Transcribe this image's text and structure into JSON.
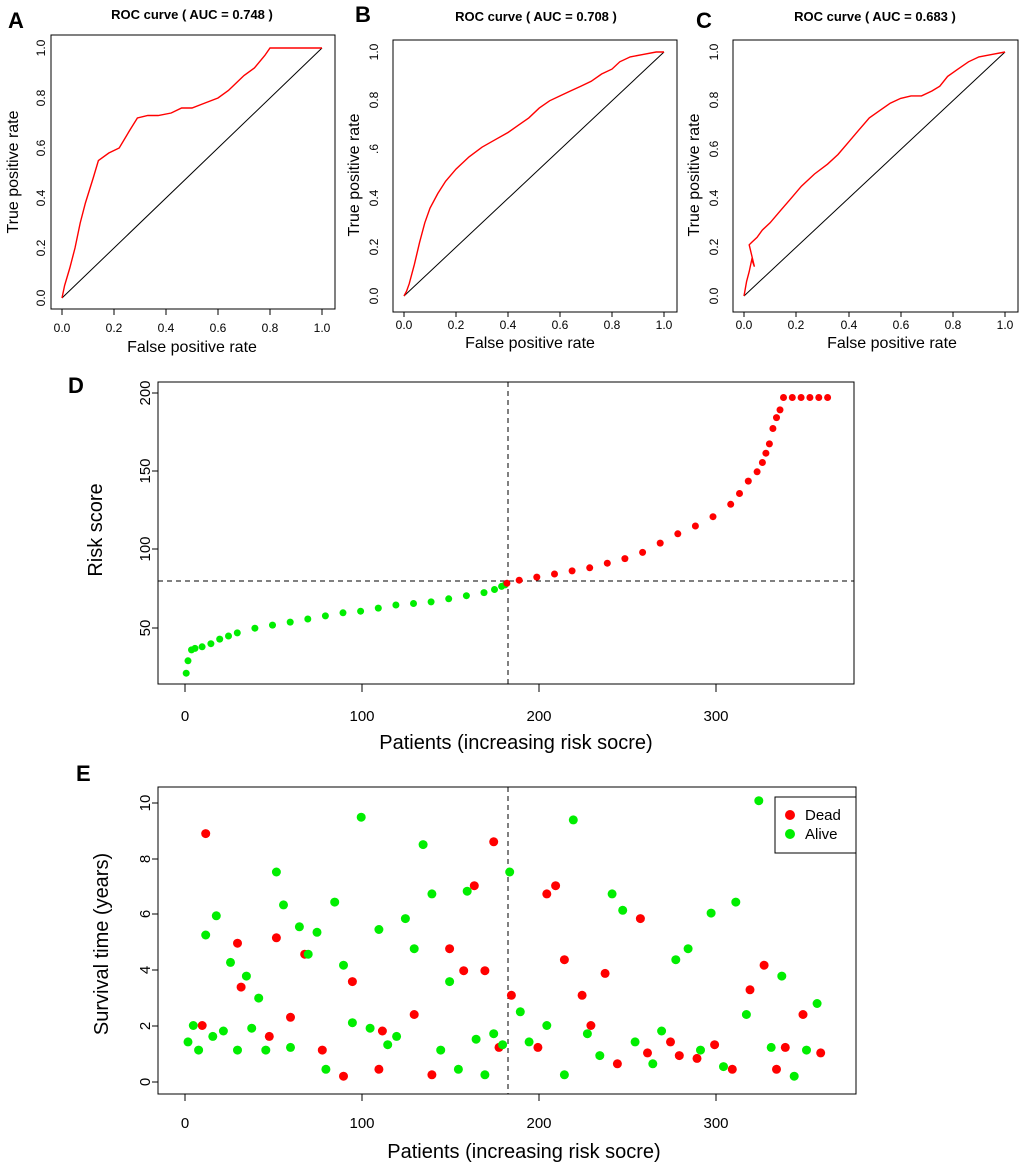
{
  "panels": {
    "a": "A",
    "b": "B",
    "c": "C",
    "d": "D",
    "e": "E"
  },
  "colors": {
    "curve": "#ff0000",
    "high": "#ff0000",
    "low": "#00ee00",
    "axis": "#000000"
  },
  "chart_data": [
    {
      "type": "line",
      "panel": "A",
      "title": "ROC curve ( AUC =  0.748 )",
      "xlabel": "False positive rate",
      "ylabel": "True positive rate",
      "xlim": [
        0,
        1
      ],
      "ylim": [
        0,
        1
      ],
      "xticks": [
        "0.0",
        "0.2",
        "0.4",
        "0.6",
        "0.8",
        "1.0"
      ],
      "yticks": [
        "0.0",
        "0.2",
        "0.4",
        "0.6",
        "0.8",
        "1.0"
      ],
      "series": [
        {
          "name": "ROC",
          "x": [
            0,
            0.01,
            0.03,
            0.05,
            0.07,
            0.09,
            0.12,
            0.14,
            0.18,
            0.22,
            0.26,
            0.29,
            0.33,
            0.37,
            0.42,
            0.46,
            0.5,
            0.55,
            0.6,
            0.64,
            0.67,
            0.7,
            0.74,
            0.78,
            0.8,
            0.85,
            0.9,
            0.95,
            1
          ],
          "y": [
            0,
            0.05,
            0.12,
            0.2,
            0.3,
            0.38,
            0.48,
            0.55,
            0.58,
            0.6,
            0.67,
            0.72,
            0.73,
            0.73,
            0.74,
            0.76,
            0.76,
            0.78,
            0.8,
            0.83,
            0.86,
            0.89,
            0.92,
            0.97,
            1.0,
            1.0,
            1.0,
            1.0,
            1.0
          ]
        },
        {
          "name": "reference",
          "x": [
            0,
            1
          ],
          "y": [
            0,
            1
          ]
        }
      ]
    },
    {
      "type": "line",
      "panel": "B",
      "title": "ROC curve ( AUC =  0.708 )",
      "xlabel": "False positive rate",
      "ylabel": "True positive rate",
      "xlim": [
        0,
        1
      ],
      "ylim": [
        0,
        1
      ],
      "xticks": [
        "0.0",
        "0.2",
        "0.4",
        "0.6",
        "0.8",
        "1.0"
      ],
      "yticks": [
        "0.0",
        "0.2",
        "0.4",
        ".6",
        "0.8",
        "1.0"
      ],
      "series": [
        {
          "name": "ROC",
          "x": [
            0,
            0.01,
            0.02,
            0.04,
            0.06,
            0.08,
            0.1,
            0.13,
            0.16,
            0.2,
            0.25,
            0.3,
            0.35,
            0.4,
            0.44,
            0.48,
            0.52,
            0.56,
            0.6,
            0.64,
            0.68,
            0.72,
            0.76,
            0.8,
            0.83,
            0.87,
            0.92,
            0.97,
            1
          ],
          "y": [
            0,
            0.02,
            0.05,
            0.13,
            0.22,
            0.3,
            0.36,
            0.42,
            0.47,
            0.52,
            0.57,
            0.61,
            0.64,
            0.67,
            0.7,
            0.73,
            0.77,
            0.8,
            0.82,
            0.84,
            0.86,
            0.88,
            0.91,
            0.93,
            0.96,
            0.98,
            0.99,
            1.0,
            1.0
          ]
        },
        {
          "name": "reference",
          "x": [
            0,
            1
          ],
          "y": [
            0,
            1
          ]
        }
      ]
    },
    {
      "type": "line",
      "panel": "C",
      "title": "ROC curve ( AUC =  0.683 )",
      "xlabel": "False positive rate",
      "ylabel": "True positive rate",
      "xlim": [
        0,
        1
      ],
      "ylim": [
        0,
        1
      ],
      "xticks": [
        "0.0",
        "0.2",
        "0.4",
        "0.6",
        "0.8",
        "1.0"
      ],
      "yticks": [
        "0.0",
        "0.2",
        "0.4",
        "0.6",
        "0.8",
        "1.0"
      ],
      "series": [
        {
          "name": "ROC",
          "x": [
            0,
            0.005,
            0.01,
            0.02,
            0.03,
            0.04,
            0.02,
            0.03,
            0.05,
            0.07,
            0.1,
            0.14,
            0.18,
            0.22,
            0.27,
            0.32,
            0.36,
            0.4,
            0.44,
            0.48,
            0.52,
            0.56,
            0.6,
            0.64,
            0.68,
            0.72,
            0.75,
            0.78,
            0.82,
            0.86,
            0.9,
            0.95,
            1
          ],
          "y": [
            0,
            0.03,
            0.06,
            0.1,
            0.15,
            0.12,
            0.21,
            0.22,
            0.24,
            0.27,
            0.3,
            0.35,
            0.4,
            0.45,
            0.5,
            0.54,
            0.58,
            0.63,
            0.68,
            0.73,
            0.76,
            0.79,
            0.81,
            0.82,
            0.82,
            0.84,
            0.86,
            0.9,
            0.93,
            0.96,
            0.98,
            0.99,
            1.0
          ]
        },
        {
          "name": "reference",
          "x": [
            0,
            1
          ],
          "y": [
            0,
            1
          ]
        }
      ]
    },
    {
      "type": "scatter",
      "panel": "D",
      "title": "",
      "xlabel": "Patients (increasing risk socre)",
      "ylabel": "Risk score",
      "xlim": [
        -15,
        380
      ],
      "ylim": [
        15,
        210
      ],
      "xticks": [
        "0",
        "100",
        "200",
        "300"
      ],
      "yticks": [
        "50",
        "100",
        "150",
        "200"
      ],
      "cutoff_x": 182,
      "cutoff_y": 79,
      "series": [
        {
          "name": "low",
          "color": "green",
          "x": [
            1,
            2,
            4,
            6,
            10,
            15,
            20,
            25,
            30,
            40,
            50,
            60,
            70,
            80,
            90,
            100,
            110,
            120,
            130,
            140,
            150,
            160,
            170,
            176,
            180,
            182
          ],
          "y": [
            22,
            30,
            37,
            38,
            39,
            41,
            44,
            46,
            48,
            51,
            53,
            55,
            57,
            59,
            61,
            62,
            64,
            66,
            67,
            68,
            70,
            72,
            74,
            76,
            78,
            79
          ]
        },
        {
          "name": "high",
          "color": "red",
          "x": [
            183,
            190,
            200,
            210,
            220,
            230,
            240,
            250,
            260,
            270,
            280,
            290,
            300,
            310,
            315,
            320,
            325,
            328,
            330,
            332,
            334,
            336,
            338,
            340,
            345,
            350,
            355,
            360,
            365
          ],
          "y": [
            80,
            82,
            84,
            86,
            88,
            90,
            93,
            96,
            100,
            106,
            112,
            117,
            123,
            131,
            138,
            146,
            152,
            158,
            164,
            170,
            180,
            187,
            192,
            200,
            200,
            200,
            200,
            200,
            200
          ]
        }
      ]
    },
    {
      "type": "scatter",
      "panel": "E",
      "title": "",
      "xlabel": "Patients (increasing risk socre)",
      "ylabel": "Survival time (years)",
      "xlim": [
        -15,
        380
      ],
      "ylim": [
        -0.6,
        10.6
      ],
      "xticks": [
        "0",
        "100",
        "200",
        "300"
      ],
      "yticks": [
        "0",
        "2",
        "4",
        "6",
        "8",
        "10"
      ],
      "cutoff_x": 182,
      "legend": {
        "position": "top-right",
        "entries": [
          "Dead",
          "Alive"
        ]
      },
      "series": [
        {
          "name": "Dead",
          "color": "red",
          "x": [
            10,
            12,
            30,
            32,
            48,
            52,
            60,
            68,
            78,
            90,
            95,
            110,
            112,
            130,
            140,
            150,
            158,
            164,
            170,
            175,
            178,
            185,
            200,
            205,
            210,
            215,
            225,
            230,
            238,
            245,
            258,
            262,
            275,
            280,
            290,
            300,
            310,
            320,
            328,
            335,
            340,
            350,
            360
          ],
          "y": [
            1.9,
            8.9,
            4.9,
            3.3,
            1.5,
            5.1,
            2.2,
            4.5,
            1.0,
            0.05,
            3.5,
            0.3,
            1.7,
            2.3,
            0.1,
            4.7,
            3.9,
            7.0,
            3.9,
            8.6,
            1.1,
            3.0,
            1.1,
            6.7,
            7.0,
            4.3,
            3.0,
            1.9,
            3.8,
            0.5,
            5.8,
            0.9,
            1.3,
            0.8,
            0.7,
            1.2,
            0.3,
            3.2,
            4.1,
            0.3,
            1.1,
            2.3,
            0.9
          ]
        },
        {
          "name": "Alive",
          "color": "green",
          "x": [
            2,
            5,
            8,
            12,
            16,
            18,
            22,
            26,
            30,
            35,
            38,
            42,
            46,
            52,
            56,
            60,
            65,
            70,
            75,
            80,
            85,
            90,
            95,
            100,
            105,
            110,
            115,
            120,
            125,
            130,
            135,
            140,
            145,
            150,
            155,
            160,
            165,
            170,
            175,
            180,
            184,
            190,
            195,
            205,
            215,
            220,
            228,
            235,
            242,
            248,
            255,
            265,
            270,
            278,
            285,
            292,
            298,
            305,
            312,
            318,
            325,
            332,
            338,
            345,
            352,
            358
          ],
          "y": [
            1.3,
            1.9,
            1.0,
            5.2,
            1.5,
            5.9,
            1.7,
            4.2,
            1.0,
            3.7,
            1.8,
            2.9,
            1.0,
            7.5,
            6.3,
            1.1,
            5.5,
            4.5,
            5.3,
            0.3,
            6.4,
            4.1,
            2.0,
            9.5,
            1.8,
            5.4,
            1.2,
            1.5,
            5.8,
            4.7,
            8.5,
            6.7,
            1.0,
            3.5,
            0.3,
            6.8,
            1.4,
            0.1,
            1.6,
            1.2,
            7.5,
            2.4,
            1.3,
            1.9,
            0.1,
            9.4,
            1.6,
            0.8,
            6.7,
            6.1,
            1.3,
            0.5,
            1.7,
            4.3,
            4.7,
            1.0,
            6.0,
            0.4,
            6.4,
            2.3,
            10.1,
            1.1,
            3.7,
            0.05,
            1.0,
            2.7
          ]
        }
      ]
    }
  ]
}
